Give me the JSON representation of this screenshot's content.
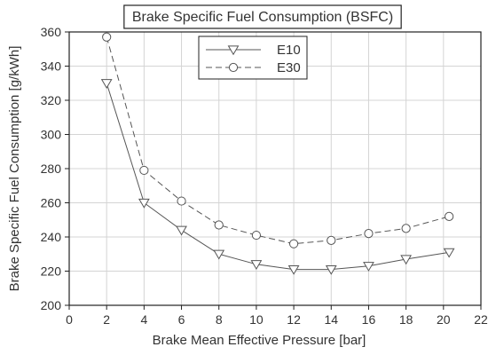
{
  "chart_data": {
    "type": "line",
    "title": "Brake Specific Fuel Consumption (BSFC)",
    "xlabel": "Brake Mean Effective Pressure [bar]",
    "ylabel": "Brake Specific Fuel Consumption  [g/kWh]",
    "xlim": [
      0,
      22
    ],
    "ylim": [
      200,
      360
    ],
    "x_ticks": [
      0,
      2,
      4,
      6,
      8,
      10,
      12,
      14,
      16,
      18,
      20,
      22
    ],
    "y_ticks": [
      200,
      220,
      240,
      260,
      280,
      300,
      320,
      340,
      360
    ],
    "grid": true,
    "legend": "top-center",
    "series": [
      {
        "name": "E10",
        "line_style": "solid",
        "marker": "triangle-down",
        "color": "#555555",
        "x": [
          2,
          4,
          6,
          8,
          10,
          12,
          14,
          16,
          18,
          20.3
        ],
        "y": [
          330,
          260,
          244,
          230,
          224,
          221,
          221,
          223,
          227,
          231
        ]
      },
      {
        "name": "E30",
        "line_style": "dashed",
        "marker": "circle",
        "color": "#555555",
        "x": [
          2,
          4,
          6,
          8,
          10,
          12,
          14,
          16,
          18,
          20.3
        ],
        "y": [
          357,
          279,
          261,
          247,
          241,
          236,
          238,
          242,
          245,
          252
        ]
      }
    ]
  }
}
